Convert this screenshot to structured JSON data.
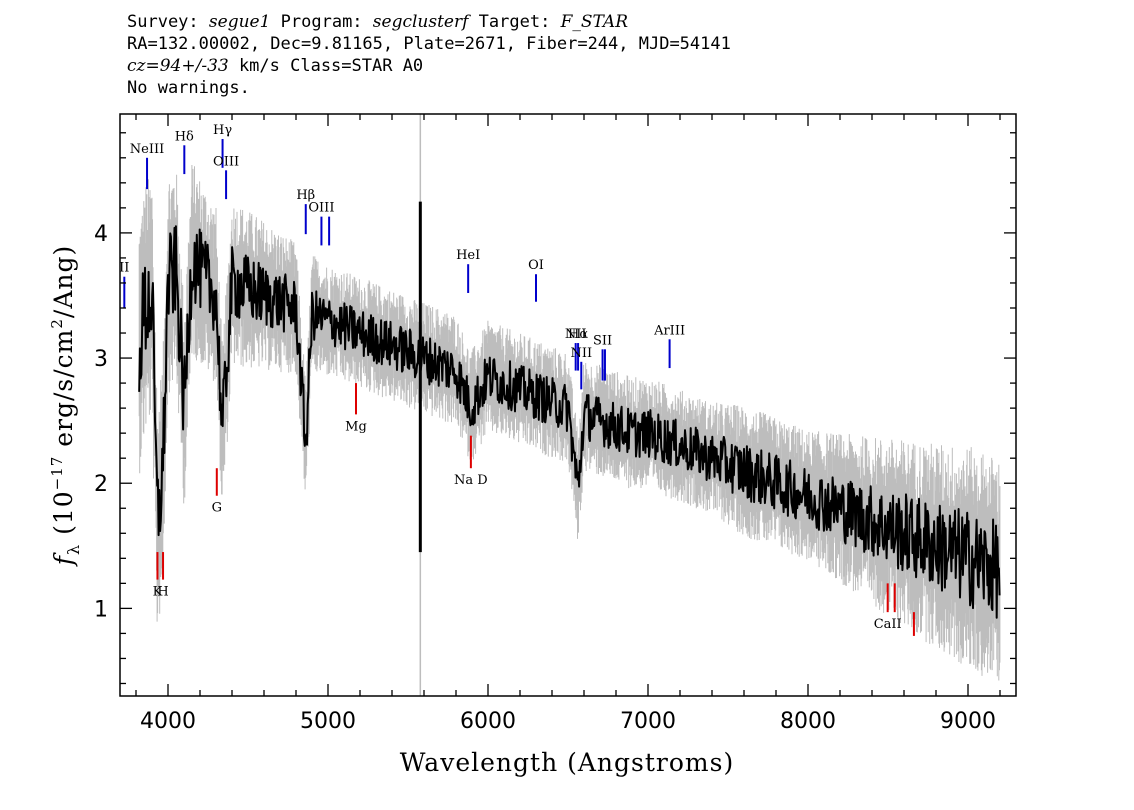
{
  "header": {
    "survey_label": "Survey:",
    "survey_value": "segue1",
    "program_label": "Program:",
    "program_value": "segclusterf",
    "target_label": "Target:",
    "target_value": "F_STAR",
    "line2": "RA=132.00002, Dec=9.81165, Plate=2671, Fiber=244, MJD=54141",
    "cz_value": "cz=94+/-33",
    "cz_rest": " km/s Class=STAR A0",
    "line4": "No warnings."
  },
  "chart_data": {
    "type": "line",
    "xlabel": "Wavelength (Angstroms)",
    "ylabel": "f_λ (10^-17 erg/s/cm^2/Ang)",
    "ylabel_parts": {
      "f": "f",
      "sub": "λ",
      "pre": " (10",
      "sup1": "−17",
      "mid": " erg/s/cm",
      "sup2": "2",
      "post": "/Ang)"
    },
    "xlim": [
      3700,
      9300
    ],
    "ylim": [
      0.3,
      4.95
    ],
    "xticks": [
      4000,
      5000,
      6000,
      7000,
      8000,
      9000
    ],
    "xtick_labels": [
      "4000",
      "5000",
      "6000",
      "7000",
      "8000",
      "9000"
    ],
    "yticks": [
      1,
      2,
      3,
      4
    ],
    "ytick_labels": [
      "1",
      "2",
      "3",
      "4"
    ],
    "colors": {
      "flux": "#000000",
      "error": "#bdbdbd",
      "emission": "#0000cc",
      "absorption": "#dd0000"
    },
    "series": [
      {
        "name": "",
        "role": "flux",
        "x": [
          3820,
          3860,
          3900,
          3933,
          3968,
          4000,
          4050,
          4101,
          4150,
          4200,
          4250,
          4300,
          4340,
          4400,
          4500,
          4600,
          4700,
          4800,
          4861,
          4900,
          5000,
          5100,
          5200,
          5300,
          5400,
          5500,
          5577,
          5600,
          5700,
          5800,
          5893,
          6000,
          6100,
          6200,
          6300,
          6400,
          6500,
          6563,
          6600,
          6700,
          6800,
          6900,
          7000,
          7100,
          7200,
          7300,
          7400,
          7500,
          7600,
          7700,
          7800,
          7900,
          8000,
          8100,
          8200,
          8300,
          8400,
          8500,
          8600,
          8700,
          8800,
          8900,
          9000,
          9100,
          9200
        ],
        "y": [
          3.1,
          3.4,
          3.5,
          1.7,
          2.1,
          3.6,
          3.7,
          2.6,
          3.8,
          3.7,
          3.6,
          3.5,
          2.4,
          3.6,
          3.55,
          3.5,
          3.45,
          3.4,
          2.3,
          3.35,
          3.3,
          3.25,
          3.2,
          3.15,
          3.1,
          3.05,
          3.0,
          3.0,
          2.95,
          2.9,
          2.6,
          2.85,
          2.8,
          2.75,
          2.7,
          2.65,
          2.6,
          1.95,
          2.55,
          2.5,
          2.45,
          2.4,
          2.4,
          2.35,
          2.3,
          2.25,
          2.2,
          2.15,
          2.1,
          2.05,
          2.0,
          1.95,
          1.9,
          1.85,
          1.8,
          1.75,
          1.7,
          1.65,
          1.6,
          1.55,
          1.5,
          1.45,
          1.4,
          1.35,
          1.3
        ]
      },
      {
        "name": "",
        "role": "error",
        "x": [
          3820,
          4000,
          4200,
          4400,
          4600,
          4800,
          5000,
          5200,
          5400,
          5600,
          5800,
          6000,
          6200,
          6400,
          6600,
          6800,
          7000,
          7200,
          7400,
          7600,
          7800,
          8000,
          8200,
          8400,
          8600,
          8800,
          9000,
          9200
        ],
        "y": [
          0.7,
          0.6,
          0.5,
          0.45,
          0.4,
          0.35,
          0.3,
          0.3,
          0.3,
          0.3,
          0.3,
          0.3,
          0.3,
          0.3,
          0.3,
          0.3,
          0.3,
          0.3,
          0.3,
          0.35,
          0.35,
          0.35,
          0.4,
          0.45,
          0.5,
          0.55,
          0.6,
          0.6
        ]
      }
    ],
    "sky_line": {
      "x": 5577,
      "y_low": 1.45,
      "y_high": 4.25
    },
    "line_labels": [
      {
        "text": "NeIII",
        "x": 3869,
        "y_top": 4.6,
        "y_bot": 4.35,
        "kind": "emission",
        "pos": "above"
      },
      {
        "text": "Hδ",
        "x": 4102,
        "y_top": 4.7,
        "y_bot": 4.47,
        "kind": "emission",
        "pos": "above"
      },
      {
        "text": "Hγ",
        "x": 4341,
        "y_top": 4.75,
        "y_bot": 4.52,
        "kind": "emission",
        "pos": "above"
      },
      {
        "text": "OIII",
        "x": 4363,
        "y_top": 4.5,
        "y_bot": 4.27,
        "kind": "emission",
        "pos": "above"
      },
      {
        "text": "Hβ",
        "x": 4861,
        "y_top": 4.23,
        "y_bot": 3.99,
        "kind": "emission",
        "pos": "above"
      },
      {
        "text": "OIII",
        "x": 4959,
        "y_top": 4.13,
        "y_bot": 3.9,
        "kind": "emission",
        "pos": "above"
      },
      {
        "text": "",
        "x": 5007,
        "y_top": 4.13,
        "y_bot": 3.9,
        "kind": "emission",
        "pos": "above"
      },
      {
        "text": "HeI",
        "x": 5876,
        "y_top": 3.75,
        "y_bot": 3.52,
        "kind": "emission",
        "pos": "above"
      },
      {
        "text": "OI",
        "x": 6300,
        "y_top": 3.67,
        "y_bot": 3.45,
        "kind": "emission",
        "pos": "above"
      },
      {
        "text": "NII",
        "x": 6548,
        "y_top": 3.12,
        "y_bot": 2.9,
        "kind": "emission",
        "pos": "above"
      },
      {
        "text": "Hα",
        "x": 6563,
        "y_top": 3.12,
        "y_bot": 2.9,
        "kind": "emission",
        "pos": "above"
      },
      {
        "text": "NII",
        "x": 6583,
        "y_top": 2.97,
        "y_bot": 2.75,
        "kind": "emission",
        "pos": "above"
      },
      {
        "text": "SII",
        "x": 6716,
        "y_top": 3.07,
        "y_bot": 2.82,
        "kind": "emission",
        "pos": "above"
      },
      {
        "text": "",
        "x": 6731,
        "y_top": 3.07,
        "y_bot": 2.82,
        "kind": "emission",
        "pos": "above"
      },
      {
        "text": "ArIII",
        "x": 7135,
        "y_top": 3.15,
        "y_bot": 2.92,
        "kind": "emission",
        "pos": "above"
      },
      {
        "text": "II",
        "x": 3727,
        "y_top": 3.65,
        "y_bot": 3.4,
        "kind": "emission",
        "pos": "above"
      },
      {
        "text": "Mg",
        "x": 5175,
        "y_top": 2.8,
        "y_bot": 2.55,
        "kind": "absorption",
        "pos": "below"
      },
      {
        "text": "G",
        "x": 4305,
        "y_top": 2.12,
        "y_bot": 1.9,
        "kind": "absorption",
        "pos": "below"
      },
      {
        "text": "K",
        "x": 3934,
        "y_top": 1.45,
        "y_bot": 1.23,
        "kind": "absorption",
        "pos": "below"
      },
      {
        "text": "H",
        "x": 3969,
        "y_top": 1.45,
        "y_bot": 1.23,
        "kind": "absorption",
        "pos": "below"
      },
      {
        "text": "Na D",
        "x": 5893,
        "y_top": 2.38,
        "y_bot": 2.12,
        "kind": "absorption",
        "pos": "below"
      },
      {
        "text": "CaII",
        "x": 8498,
        "y_top": 1.2,
        "y_bot": 0.97,
        "kind": "absorption",
        "pos": "below"
      },
      {
        "text": "",
        "x": 8542,
        "y_top": 1.2,
        "y_bot": 0.97,
        "kind": "absorption",
        "pos": "below"
      },
      {
        "text": "",
        "x": 8662,
        "y_top": 0.97,
        "y_bot": 0.78,
        "kind": "absorption",
        "pos": "below"
      }
    ]
  }
}
